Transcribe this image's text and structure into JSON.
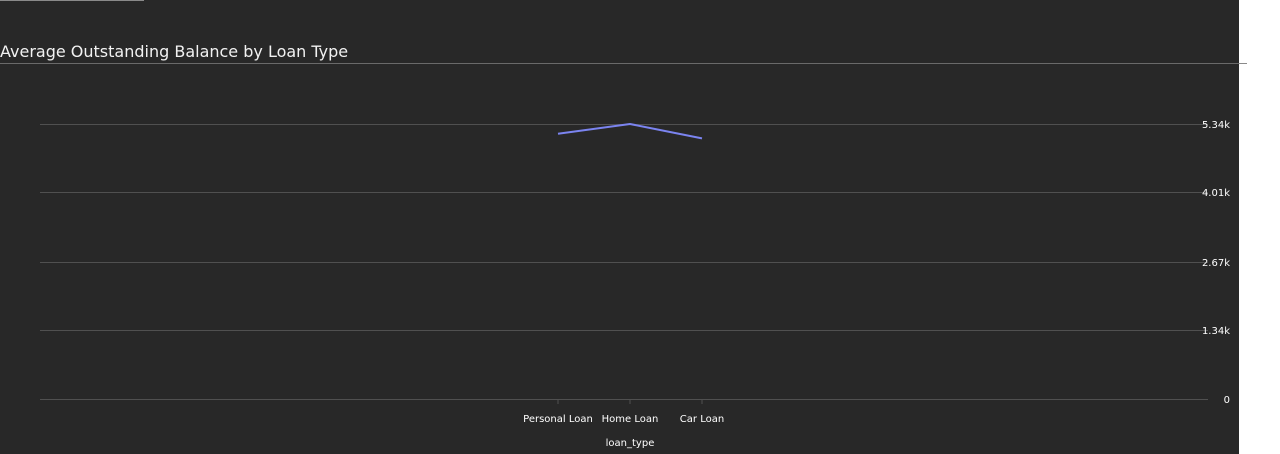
{
  "chart_data": {
    "type": "line",
    "title": "Average Outstanding Balance by Loan Type",
    "xlabel": "loan_type",
    "ylabel": "",
    "categories": [
      "Personal Loan",
      "Home Loan",
      "Car Loan"
    ],
    "series": [
      {
        "values": [
          5150,
          5340,
          5060
        ],
        "color": "#7b84f0"
      }
    ],
    "yticks": [
      0,
      1340,
      2670,
      4010,
      5340
    ],
    "ytick_labels": [
      "0",
      "1.34k",
      "2.67k",
      "4.01k",
      "5.34k"
    ],
    "ylim": [
      0,
      5340
    ],
    "grid": true,
    "y_axis_position": "right",
    "legend": "none"
  },
  "colors": {
    "background": "#282828",
    "gridline": "#505050",
    "series": "#7b84f0"
  }
}
